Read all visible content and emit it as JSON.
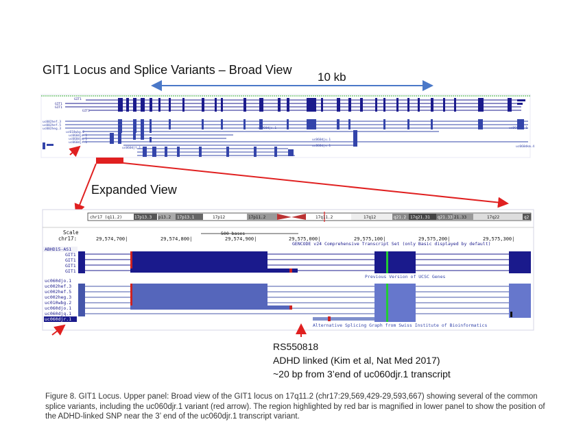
{
  "title": "GIT1 Locus and Splice Variants – Broad View",
  "scale_label": "10 kb",
  "expanded_label": "Expanded View",
  "colors": {
    "arrow_red": "#e02020",
    "scale_blue": "#4a78c8",
    "track_navy": "#1a1a8c",
    "track_blue": "#3344aa",
    "highlight_green": "#22cc33",
    "exon_red": "#cc2222"
  },
  "upper_panel": {
    "gene_labels_top": [
      "GIT1",
      "GIT1",
      "GIT1"
    ],
    "variant_labels": [
      "uc002hef.3",
      "uc002hef.5",
      "uc002heg.3",
      "uc010wbg.2",
      "uc060djo.1",
      "uc060djq.1",
      "uc060djr.1"
    ],
    "mid_labels": [
      "uc060djs.1",
      "uc060dju.1",
      "uc060djv.1",
      "uc060djt.1"
    ],
    "right_labels": [
      "uc060dka.1",
      "uc060dkm.4"
    ]
  },
  "lower_panel": {
    "chrom_label": "chr17 (q11.2)",
    "bands": [
      "17p13.3",
      "p13.2",
      "17p13.1",
      "17p12",
      "17p11.2",
      "17q11.2",
      "17q12",
      "q21.2",
      "17q21.31",
      "q21.33",
      "21.33",
      "17q22",
      "q2"
    ],
    "scale_word": "Scale",
    "chr_word": "chr17:",
    "scale_bar_label": "500 bases",
    "positions": [
      "29,574,700|",
      "29,574,800|",
      "29,574,900|",
      "29,575,000|",
      "29,575,100|",
      "29,575,200|",
      "29,575,300|"
    ],
    "gencode_title": "GENCODE v24 Comprehensive Transcript Set (only Basic displayed by default)",
    "ucsc_title": "Previous Version of UCSC Genes",
    "alt_splice_title": "Alternative Splicing Graph from Swiss Institute of Bioinformatics",
    "track_labels": [
      "ABHD15-AS1",
      "GIT1",
      "GIT1",
      "GIT1",
      "GIT1",
      "uc060djo.1",
      "uc002hef.3",
      "uc002hef.5",
      "uc002heg.3",
      "uc010wbg.2",
      "uc060djo.1",
      "uc060djq.1",
      "uc060djr.1"
    ]
  },
  "snp": {
    "id": "RS550818",
    "line2": "ADHD linked (Kim et al, Nat Med 2017)",
    "line3": "~20 bp from 3’end of uc060djr.1 transcript"
  },
  "caption": "Figure 8. GIT1 Locus. Upper panel:  Broad view of the GIT1 locus on 17q11.2 (chr17:29,569,429-29,593,667) showing several of the common splice variants, including the uc060djr.1 variant (red arrow).  The region highlighted by red bar is magnified in lower panel to show the position of the ADHD-linked SNP near the 3’ end of the uc060djr.1 transcript variant."
}
